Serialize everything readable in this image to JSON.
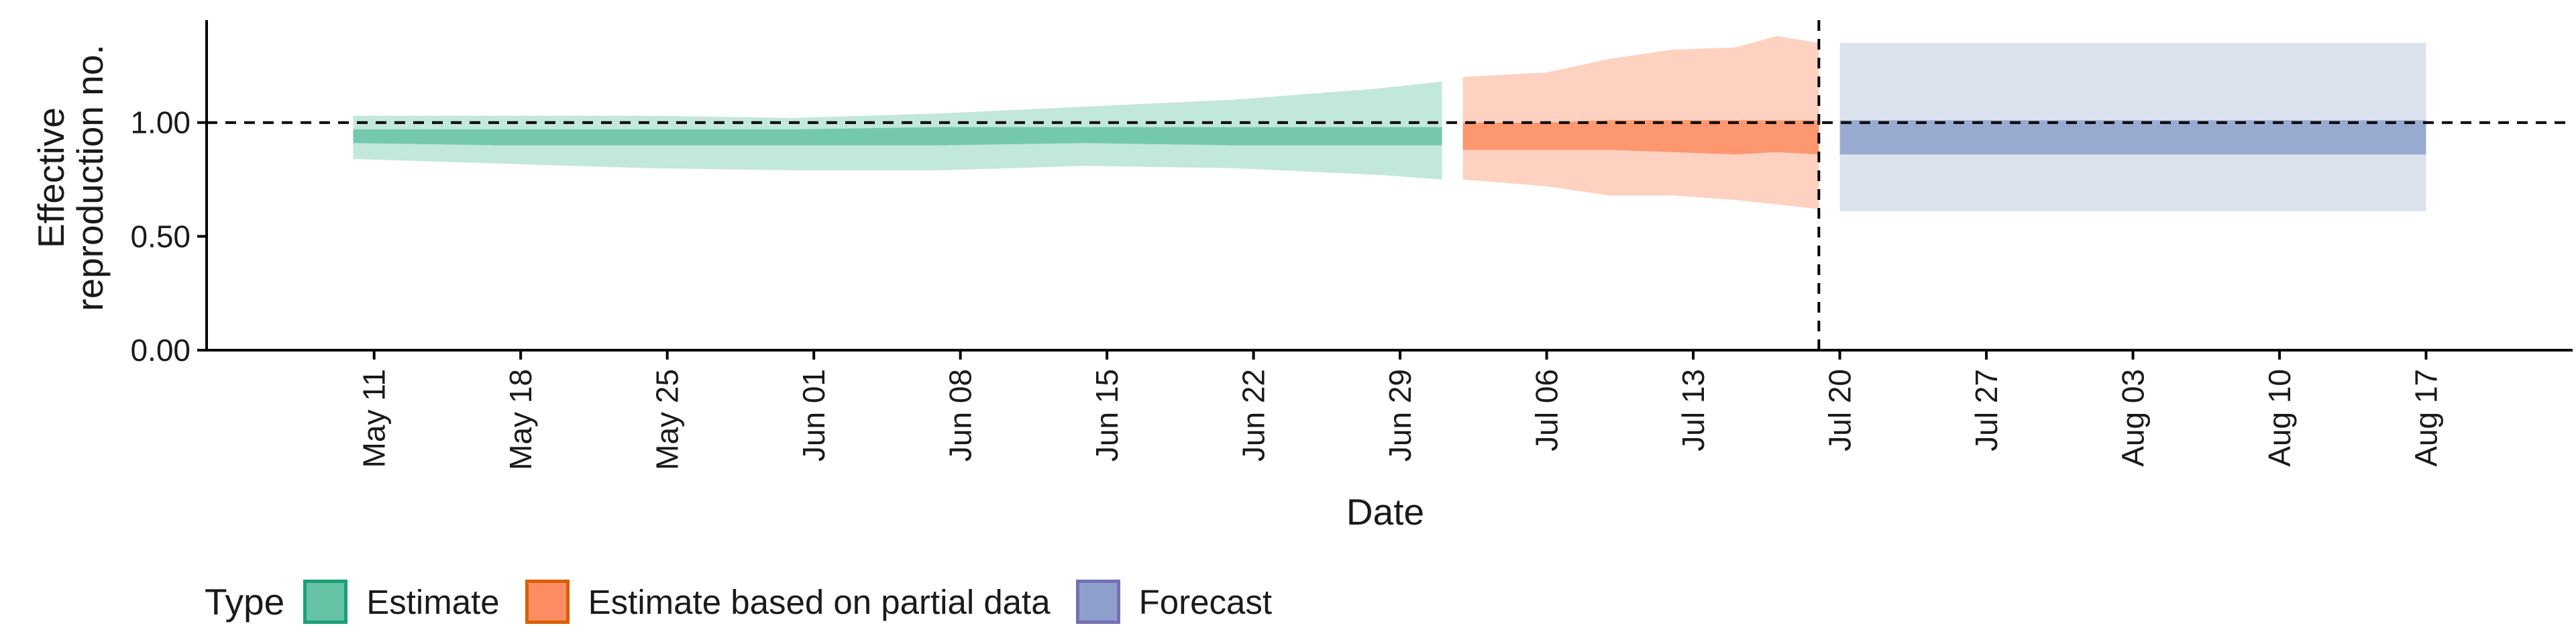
{
  "chart_data": {
    "type": "area",
    "title": "",
    "xlabel": "Date",
    "ylabel_lines": [
      "Effective",
      "reproduction no."
    ],
    "ylim": [
      0,
      1.45
    ],
    "yticks": [
      0,
      0.5,
      1,
      1.5
    ],
    "ytick_labels": [
      "0.00",
      "0.50",
      "1.00",
      ""
    ],
    "xlim": [
      "2020-05-03",
      "2020-08-24"
    ],
    "xticks": [
      "2020-05-11",
      "2020-05-18",
      "2020-05-25",
      "2020-06-01",
      "2020-06-08",
      "2020-06-15",
      "2020-06-22",
      "2020-06-29",
      "2020-07-06",
      "2020-07-13",
      "2020-07-20",
      "2020-07-27",
      "2020-08-03",
      "2020-08-10",
      "2020-08-17"
    ],
    "xtick_labels": [
      "May 11",
      "May 18",
      "May 25",
      "Jun 01",
      "Jun 08",
      "Jun 15",
      "Jun 22",
      "Jun 29",
      "Jul 06",
      "Jul 13",
      "Jul 20",
      "Jul 27",
      "Aug 03",
      "Aug 10",
      "Aug 17"
    ],
    "reference_line_y": 1.0,
    "vertical_line_x": "2020-07-19",
    "grid": false,
    "legend_position": "bottom-left",
    "legend_title": "Type",
    "series": [
      {
        "name": "Estimate",
        "fill": "#66c2a5",
        "border": "#1b9e77",
        "x": [
          "2020-05-10",
          "2020-05-17",
          "2020-05-24",
          "2020-05-31",
          "2020-06-07",
          "2020-06-14",
          "2020-06-21",
          "2020-06-28",
          "2020-07-01"
        ],
        "outer_upper": [
          1.03,
          1.03,
          1.03,
          1.02,
          1.04,
          1.07,
          1.1,
          1.15,
          1.18
        ],
        "outer_lower": [
          0.84,
          0.82,
          0.8,
          0.79,
          0.79,
          0.81,
          0.8,
          0.77,
          0.75
        ],
        "inner_upper": [
          0.97,
          0.97,
          0.97,
          0.97,
          0.98,
          0.98,
          0.98,
          0.98,
          0.98
        ],
        "inner_lower": [
          0.91,
          0.9,
          0.9,
          0.9,
          0.9,
          0.91,
          0.9,
          0.9,
          0.9
        ]
      },
      {
        "name": "Estimate based on partial data",
        "fill": "#fc8d62",
        "border": "#d95f02",
        "x": [
          "2020-07-02",
          "2020-07-06",
          "2020-07-09",
          "2020-07-12",
          "2020-07-15",
          "2020-07-17",
          "2020-07-19"
        ],
        "outer_upper": [
          1.2,
          1.22,
          1.28,
          1.32,
          1.33,
          1.38,
          1.35
        ],
        "outer_lower": [
          0.75,
          0.72,
          0.68,
          0.68,
          0.66,
          0.64,
          0.62
        ],
        "inner_upper": [
          1.0,
          1.0,
          1.01,
          1.01,
          1.01,
          1.01,
          1.01
        ],
        "inner_lower": [
          0.88,
          0.88,
          0.88,
          0.87,
          0.86,
          0.87,
          0.86
        ]
      },
      {
        "name": "Forecast",
        "fill": "#8da0cb",
        "border": "#7570b3",
        "x": [
          "2020-07-20",
          "2020-08-17"
        ],
        "outer_upper": [
          1.35,
          1.35
        ],
        "outer_lower": [
          0.61,
          0.61
        ],
        "inner_upper": [
          1.01,
          1.01
        ],
        "inner_lower": [
          0.86,
          0.86
        ]
      }
    ]
  }
}
